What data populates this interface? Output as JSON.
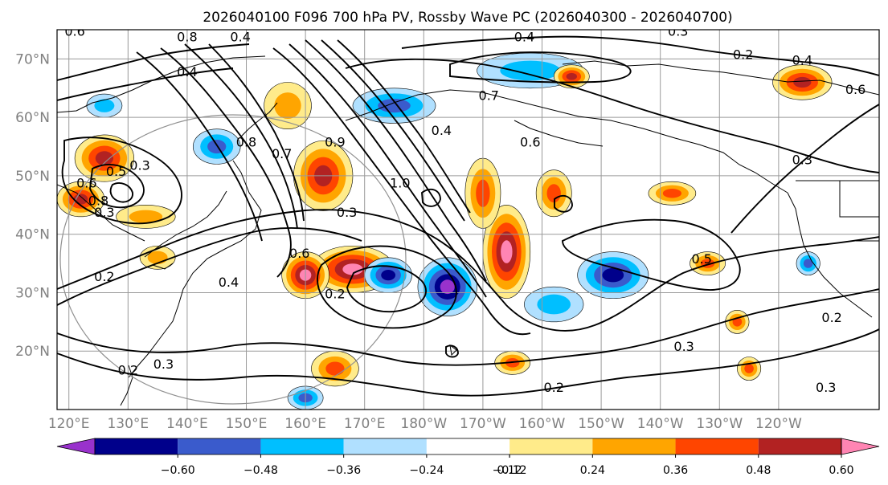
{
  "chart_data": {
    "type": "heatmap",
    "title": "2026040100 F096 700 hPa PV, Rossby Wave PC (2026040300 - 2026040700)",
    "lat_labels": [
      "70°N",
      "60°N",
      "50°N",
      "40°N",
      "30°N",
      "20°N"
    ],
    "lat_values": [
      70,
      60,
      50,
      40,
      30,
      20
    ],
    "lon_labels": [
      "120°E",
      "130°E",
      "140°E",
      "150°E",
      "160°E",
      "170°E",
      "180°W",
      "170°W",
      "160°W",
      "150°W",
      "140°W",
      "130°W",
      "120°W"
    ],
    "lon_values": [
      120,
      130,
      140,
      150,
      160,
      170,
      180,
      190,
      200,
      210,
      220,
      230,
      240
    ],
    "extent": {
      "lon_min": 118,
      "lon_max": 257,
      "lat_min": 10,
      "lat_max": 75
    },
    "gridlines": true,
    "colorbar": {
      "tick_labels": [
        "−0.60",
        "−0.48",
        "−0.36",
        "−0.24",
        "−0.12",
        "0.12",
        "0.24",
        "0.36",
        "0.48",
        "0.60"
      ],
      "colors": [
        "#9932cc",
        "#00008b",
        "#3a5bcc",
        "#00bfff",
        "#b0e0ff",
        "#ffffff",
        "#ffeb8a",
        "#ffa500",
        "#ff4500",
        "#b22222",
        "#ff85b3"
      ],
      "extend": "both"
    },
    "contour_labels": [
      {
        "text": "0.6",
        "lon": 121,
        "lat": 74
      },
      {
        "text": "0.8",
        "lon": 140,
        "lat": 73
      },
      {
        "text": "0.4",
        "lon": 149,
        "lat": 73
      },
      {
        "text": "0.4",
        "lon": 140,
        "lat": 67
      },
      {
        "text": "0.3",
        "lon": 132,
        "lat": 51
      },
      {
        "text": "0.5",
        "lon": 128,
        "lat": 50
      },
      {
        "text": "0.6",
        "lon": 123,
        "lat": 48
      },
      {
        "text": "0.8",
        "lon": 125,
        "lat": 45
      },
      {
        "text": "0.8",
        "lon": 150,
        "lat": 55
      },
      {
        "text": "0.7",
        "lon": 156,
        "lat": 53
      },
      {
        "text": "0.3",
        "lon": 126,
        "lat": 43
      },
      {
        "text": "0.2",
        "lon": 126,
        "lat": 32
      },
      {
        "text": "0.4",
        "lon": 147,
        "lat": 31
      },
      {
        "text": "0.6",
        "lon": 159,
        "lat": 36
      },
      {
        "text": "0.2",
        "lon": 165,
        "lat": 29
      },
      {
        "text": "0.9",
        "lon": 165,
        "lat": 55
      },
      {
        "text": "0.3",
        "lon": 167,
        "lat": 43
      },
      {
        "text": "1.0",
        "lon": 176,
        "lat": 48
      },
      {
        "text": "0.7",
        "lon": 191,
        "lat": 63
      },
      {
        "text": "0.4",
        "lon": 197,
        "lat": 73
      },
      {
        "text": "0.6",
        "lon": 198,
        "lat": 55
      },
      {
        "text": "0.3",
        "lon": 223,
        "lat": 74
      },
      {
        "text": "0.2",
        "lon": 234,
        "lat": 70
      },
      {
        "text": "0.4",
        "lon": 244,
        "lat": 69
      },
      {
        "text": "0.6",
        "lon": 253,
        "lat": 64
      },
      {
        "text": "0.3",
        "lon": 244,
        "lat": 52
      },
      {
        "text": "0.5",
        "lon": 227,
        "lat": 35
      },
      {
        "text": "0.3",
        "lon": 224,
        "lat": 20
      },
      {
        "text": "0.2",
        "lon": 249,
        "lat": 25
      },
      {
        "text": "0.3",
        "lon": 248,
        "lat": 13
      },
      {
        "text": "0.2",
        "lon": 202,
        "lat": 13
      },
      {
        "text": "0.2",
        "lon": 130,
        "lat": 16
      },
      {
        "text": "0.3",
        "lon": 136,
        "lat": 17
      },
      {
        "text": "0.4",
        "lon": 183,
        "lat": 57
      }
    ],
    "anomalies": [
      {
        "lon": 126,
        "lat": 53,
        "rx": 5,
        "ry": 4,
        "v": 0.55
      },
      {
        "lon": 122,
        "lat": 46,
        "rx": 4,
        "ry": 3,
        "v": 0.5
      },
      {
        "lon": 133,
        "lat": 43,
        "rx": 5,
        "ry": 2,
        "v": 0.3
      },
      {
        "lon": 135,
        "lat": 36,
        "rx": 3,
        "ry": 2,
        "v": 0.28
      },
      {
        "lon": 145,
        "lat": 55,
        "rx": 4,
        "ry": 3,
        "v": -0.42
      },
      {
        "lon": 126,
        "lat": 62,
        "rx": 3,
        "ry": 2,
        "v": -0.3
      },
      {
        "lon": 157,
        "lat": 62,
        "rx": 4,
        "ry": 4,
        "v": 0.3
      },
      {
        "lon": 163,
        "lat": 50,
        "rx": 5,
        "ry": 6,
        "v": 0.5
      },
      {
        "lon": 168,
        "lat": 34,
        "rx": 7,
        "ry": 4,
        "v": 0.62
      },
      {
        "lon": 160,
        "lat": 33,
        "rx": 4,
        "ry": 4,
        "v": 0.62
      },
      {
        "lon": 174,
        "lat": 33,
        "rx": 4,
        "ry": 3,
        "v": -0.55
      },
      {
        "lon": 184,
        "lat": 31,
        "rx": 5,
        "ry": 5,
        "v": -0.62
      },
      {
        "lon": 194,
        "lat": 37,
        "rx": 4,
        "ry": 8,
        "v": 0.6
      },
      {
        "lon": 190,
        "lat": 47,
        "rx": 3,
        "ry": 6,
        "v": 0.4
      },
      {
        "lon": 212,
        "lat": 33,
        "rx": 6,
        "ry": 4,
        "v": -0.55
      },
      {
        "lon": 175,
        "lat": 62,
        "rx": 7,
        "ry": 3,
        "v": -0.45
      },
      {
        "lon": 198,
        "lat": 68,
        "rx": 9,
        "ry": 3,
        "v": -0.35
      },
      {
        "lon": 205,
        "lat": 67,
        "rx": 3,
        "ry": 2,
        "v": 0.5
      },
      {
        "lon": 244,
        "lat": 66,
        "rx": 5,
        "ry": 3,
        "v": 0.5
      },
      {
        "lon": 222,
        "lat": 47,
        "rx": 4,
        "ry": 2,
        "v": 0.4
      },
      {
        "lon": 202,
        "lat": 47,
        "rx": 3,
        "ry": 4,
        "v": 0.4
      },
      {
        "lon": 245,
        "lat": 35,
        "rx": 2,
        "ry": 2,
        "v": -0.4
      },
      {
        "lon": 165,
        "lat": 17,
        "rx": 4,
        "ry": 3,
        "v": 0.45
      },
      {
        "lon": 160,
        "lat": 12,
        "rx": 3,
        "ry": 2,
        "v": -0.45
      },
      {
        "lon": 195,
        "lat": 18,
        "rx": 3,
        "ry": 2,
        "v": 0.4
      },
      {
        "lon": 235,
        "lat": 17,
        "rx": 2,
        "ry": 2,
        "v": 0.4
      },
      {
        "lon": 233,
        "lat": 25,
        "rx": 2,
        "ry": 2,
        "v": 0.4
      },
      {
        "lon": 228,
        "lat": 35,
        "rx": 3,
        "ry": 2,
        "v": 0.4
      },
      {
        "lon": 202,
        "lat": 28,
        "rx": 5,
        "ry": 3,
        "v": -0.3
      }
    ]
  }
}
